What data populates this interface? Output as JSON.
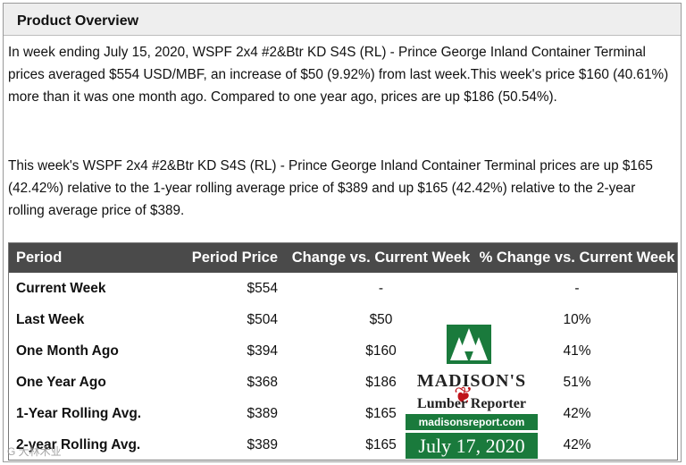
{
  "panel": {
    "title": "Product Overview"
  },
  "paragraphs": [
    "In week ending July 15, 2020, WSPF 2x4 #2&Btr KD S4S (RL) - Prince George Inland Container Terminal prices averaged $554 USD/MBF, an increase of $50 (9.92%) from last week.This week's price $160 (40.61%) more than it was one month ago. Compared to one year ago, prices are up $186 (50.54%).",
    "This week's WSPF 2x4 #2&Btr KD S4S (RL) - Prince George Inland Container Terminal prices are up $165 (42.42%) relative to the 1-year rolling average price of $389 and up $165 (42.42%) relative to the 2-year rolling average price of $389."
  ],
  "table": {
    "headers": [
      "Period",
      "Period Price",
      "Change vs. Current Week",
      "% Change vs. Current Week"
    ],
    "rows": [
      [
        "Current Week",
        "$554",
        "-",
        "-"
      ],
      [
        "Last Week",
        "$504",
        "$50",
        "10%"
      ],
      [
        "One Month Ago",
        "$394",
        "$160",
        "41%"
      ],
      [
        "One Year Ago",
        "$368",
        "$186",
        "51%"
      ],
      [
        "1-Year Rolling Avg.",
        "$389",
        "$165",
        "42%"
      ],
      [
        "2-year Rolling Avg.",
        "$389",
        "$165",
        "42%"
      ]
    ]
  },
  "logo": {
    "name": "MADISON'S",
    "sub": "Lumber Reporter",
    "url": "madisonsreport.com",
    "date": "July 17, 2020",
    "colors": {
      "green": "#1a7a3c",
      "leaf": "#c0141a"
    }
  },
  "watermark": "G 大林木业"
}
